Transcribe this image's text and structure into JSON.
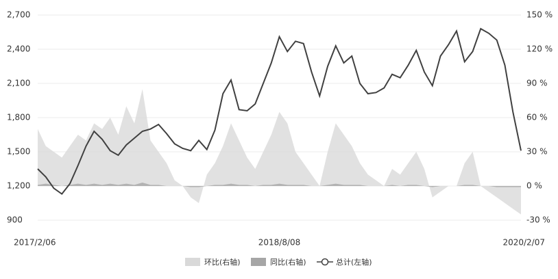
{
  "chart_data": {
    "type": "line-area",
    "categories": [
      "2017/2/06",
      null,
      null,
      null,
      null,
      null,
      null,
      null,
      null,
      null,
      null,
      null,
      null,
      null,
      null,
      null,
      null,
      null,
      null,
      null,
      null,
      null,
      null,
      null,
      null,
      null,
      null,
      null,
      null,
      null,
      "2018/8/08",
      null,
      null,
      null,
      null,
      null,
      null,
      null,
      null,
      null,
      null,
      null,
      null,
      null,
      null,
      null,
      null,
      null,
      null,
      null,
      null,
      null,
      null,
      null,
      null,
      null,
      null,
      null,
      null,
      null,
      "2020/2/07"
    ],
    "series": [
      {
        "name": "环比(右轴)",
        "color": "#d9d9d9",
        "axis": "y2",
        "kind": "area",
        "values": [
          50,
          35,
          30,
          25,
          35,
          45,
          40,
          55,
          50,
          60,
          45,
          70,
          55,
          85,
          40,
          30,
          20,
          5,
          0,
          -10,
          -15,
          10,
          20,
          35,
          55,
          40,
          25,
          15,
          30,
          45,
          65,
          55,
          30,
          20,
          10,
          0,
          30,
          55,
          45,
          35,
          20,
          10,
          5,
          0,
          15,
          10,
          20,
          30,
          15,
          -10,
          -5,
          0,
          0,
          20,
          30,
          0,
          -5,
          -10,
          -15,
          -20,
          -25
        ]
      },
      {
        "name": "同比(右轴)",
        "color": "#a6a6a6",
        "axis": "y2",
        "kind": "area",
        "values": [
          1,
          2,
          1,
          0,
          1,
          2,
          1,
          2,
          1,
          2,
          1,
          2,
          1,
          3,
          1,
          1,
          0,
          0,
          0,
          -1,
          -1,
          0,
          1,
          1,
          2,
          1,
          1,
          0,
          1,
          1,
          2,
          1,
          1,
          1,
          0,
          0,
          1,
          2,
          1,
          1,
          1,
          0,
          0,
          0,
          1,
          0,
          1,
          1,
          0,
          -1,
          0,
          0,
          0,
          1,
          1,
          0,
          0,
          -1,
          -1,
          -1,
          -1
        ]
      },
      {
        "name": "总计(左轴)",
        "color": "#404040",
        "kind": "line",
        "values": [
          1350,
          1280,
          1180,
          1130,
          1220,
          1380,
          1550,
          1680,
          1610,
          1510,
          1470,
          1560,
          1620,
          1680,
          1700,
          1740,
          1660,
          1570,
          1530,
          1510,
          1600,
          1520,
          1690,
          2010,
          2130,
          1870,
          1860,
          1920,
          2100,
          2280,
          2510,
          2380,
          2470,
          2450,
          2200,
          1990,
          2250,
          2430,
          2280,
          2340,
          2100,
          2010,
          2020,
          2060,
          2180,
          2150,
          2260,
          2390,
          2200,
          2080,
          2340,
          2440,
          2560,
          2290,
          2380,
          2580,
          2540,
          2480,
          2260,
          1850,
          1510
        ]
      }
    ],
    "ylim": [
      900,
      2700
    ],
    "yticks": [
      900,
      {
        "value": 1200,
        "label": "1,200"
      },
      {
        "value": 1500,
        "label": "1,500"
      },
      {
        "value": 1800,
        "label": "1,800"
      },
      {
        "value": 2100,
        "label": "2,100"
      },
      {
        "value": 2400,
        "label": "2,400"
      },
      {
        "value": 2700,
        "label": "2,700"
      }
    ],
    "y2lim": [
      -30,
      150
    ],
    "y2ticks": [
      {
        "value": -30,
        "label": "-30 %"
      },
      {
        "value": 0,
        "label": "0 %"
      },
      {
        "value": 30,
        "label": "30 %"
      },
      {
        "value": 60,
        "label": "60 %"
      },
      {
        "value": 90,
        "label": "90 %"
      },
      {
        "value": 120,
        "label": "120 %"
      },
      {
        "value": 150,
        "label": "150 %"
      }
    ],
    "grid": true,
    "legend": "bottom"
  }
}
